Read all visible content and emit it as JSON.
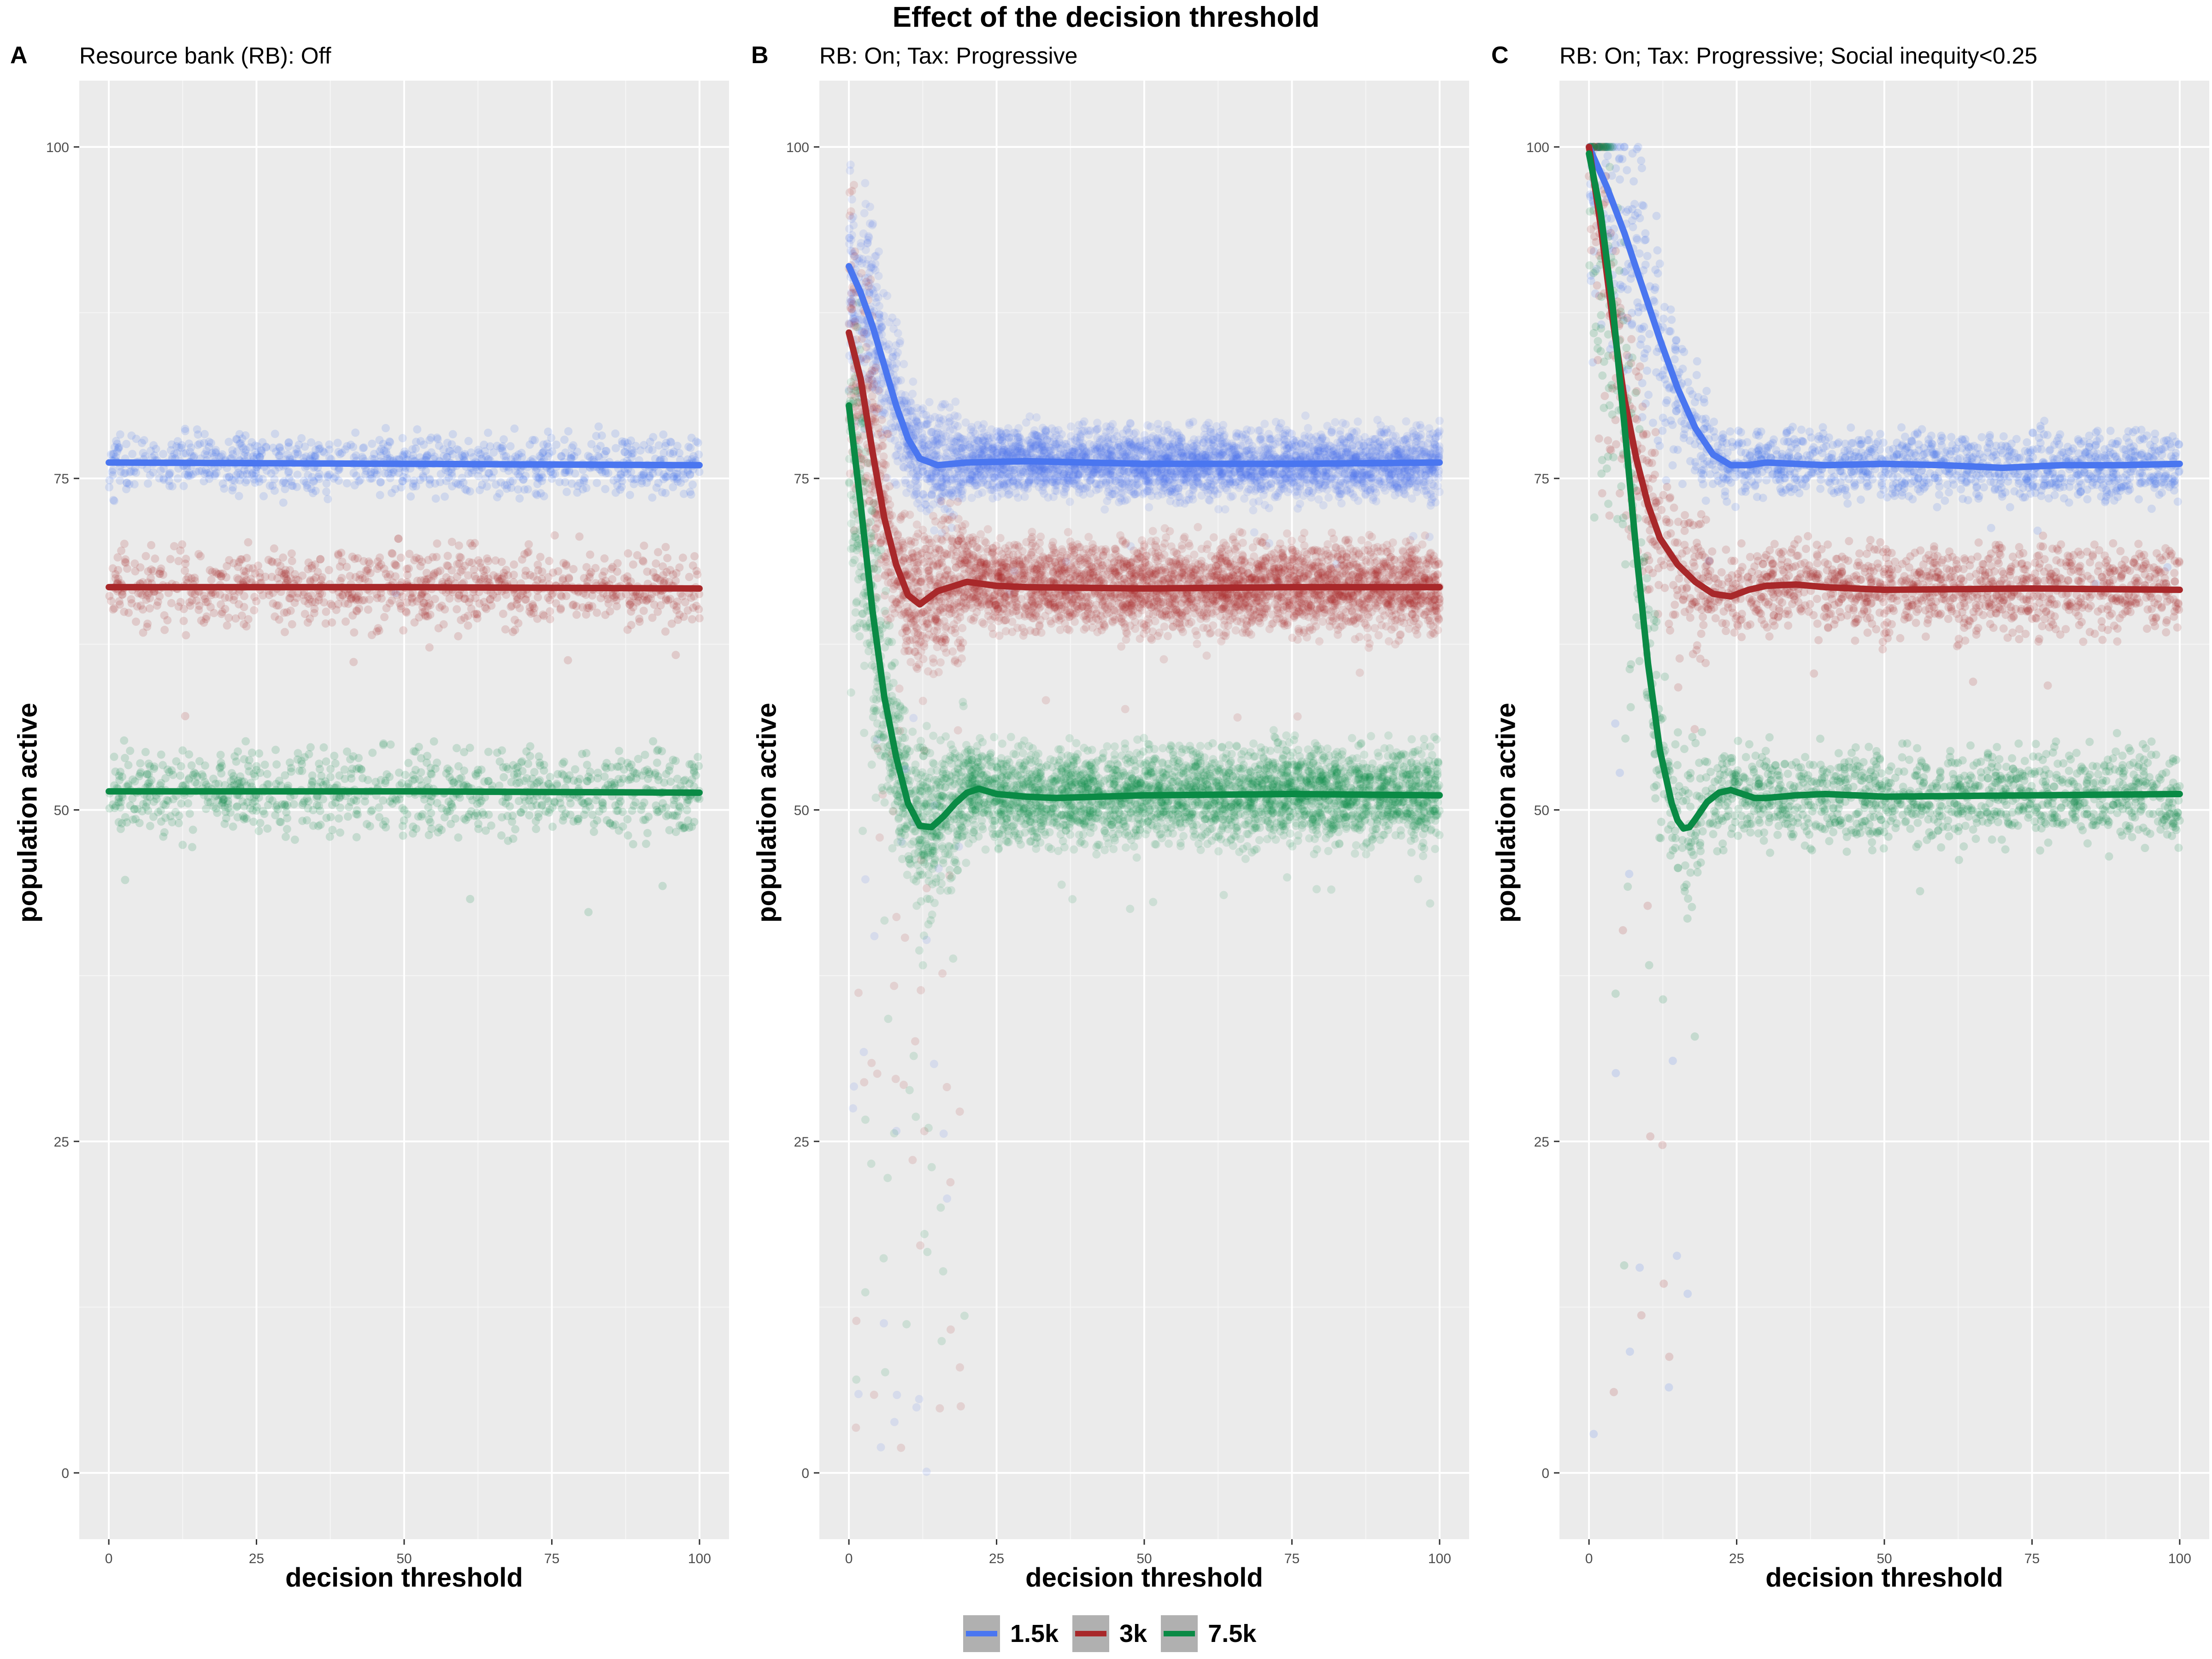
{
  "figure": {
    "title": "Effect of the decision threshold",
    "xlabel": "decision threshold",
    "ylabel": "population active"
  },
  "legend": {
    "placement": "bottom",
    "items": [
      {
        "label": "1.5k",
        "color": "#4A76F0"
      },
      {
        "label": "3k",
        "color": "#A8282A"
      },
      {
        "label": "7.5k",
        "color": "#0A8A45"
      }
    ]
  },
  "chart_data": [
    {
      "type": "scatter",
      "panel_letter": "A",
      "title": "Resource bank (RB): Off",
      "xlabel": "decision threshold",
      "ylabel": "population active",
      "xlim": [
        -5,
        105
      ],
      "ylim": [
        -5,
        105
      ],
      "xticks": [
        0,
        25,
        50,
        75,
        100
      ],
      "yticks": [
        0,
        25,
        50,
        75,
        100
      ],
      "grid": true,
      "series": [
        {
          "name": "1.5k",
          "color": "#4A76F0",
          "smooth_x": [
            0,
            50,
            100
          ],
          "smooth_y": [
            76.2,
            76.1,
            76.0
          ],
          "point_band": [
            73,
            79
          ],
          "point_density": "sparse"
        },
        {
          "name": "3k",
          "color": "#A8282A",
          "smooth_x": [
            0,
            50,
            100
          ],
          "smooth_y": [
            66.8,
            66.8,
            66.7
          ],
          "point_band": [
            63,
            70.5
          ],
          "point_density": "sparse"
        },
        {
          "name": "7.5k",
          "color": "#0A8A45",
          "smooth_x": [
            0,
            50,
            100
          ],
          "smooth_y": [
            51.4,
            51.4,
            51.3
          ],
          "point_band": [
            47.5,
            55.5
          ],
          "point_density": "sparse"
        }
      ]
    },
    {
      "type": "scatter",
      "panel_letter": "B",
      "title": "RB: On; Tax: Progressive",
      "xlabel": "decision threshold",
      "ylabel": "population active",
      "xlim": [
        -5,
        105
      ],
      "ylim": [
        -5,
        105
      ],
      "xticks": [
        0,
        25,
        50,
        75,
        100
      ],
      "yticks": [
        0,
        25,
        50,
        75,
        100
      ],
      "grid": true,
      "series": [
        {
          "name": "1.5k",
          "color": "#4A76F0",
          "smooth_x": [
            0,
            2,
            4,
            6,
            8,
            10,
            12,
            15,
            20,
            30,
            50,
            75,
            100
          ],
          "smooth_y": [
            91,
            89,
            86.5,
            83.5,
            80.5,
            78,
            76.5,
            76,
            76.2,
            76.3,
            76.1,
            76.1,
            76.2
          ],
          "point_band": [
            73,
            79.5
          ],
          "point_density": "dense"
        },
        {
          "name": "3k",
          "color": "#A8282A",
          "smooth_x": [
            0,
            2,
            4,
            6,
            8,
            10,
            12,
            15,
            20,
            25,
            30,
            50,
            75,
            100
          ],
          "smooth_y": [
            86,
            82.5,
            77,
            72,
            68.5,
            66.2,
            65.5,
            66.5,
            67.2,
            66.9,
            66.8,
            66.7,
            66.8,
            66.8
          ],
          "point_band": [
            62.5,
            71
          ],
          "point_density": "dense"
        },
        {
          "name": "7.5k",
          "color": "#0A8A45",
          "smooth_x": [
            0,
            2,
            4,
            6,
            8,
            10,
            12,
            14,
            16,
            18,
            20,
            22,
            25,
            30,
            35,
            50,
            75,
            100
          ],
          "smooth_y": [
            80.5,
            73,
            65,
            58.5,
            54,
            50.5,
            48.8,
            48.7,
            49.5,
            50.5,
            51.3,
            51.6,
            51.2,
            51,
            50.9,
            51.1,
            51.2,
            51.1
          ],
          "point_band": [
            47,
            56
          ],
          "point_density": "dense"
        }
      ]
    },
    {
      "type": "scatter",
      "panel_letter": "C",
      "title": "RB: On; Tax: Progressive; Social inequity<0.25",
      "xlabel": "decision threshold",
      "ylabel": "population active",
      "xlim": [
        -5,
        105
      ],
      "ylim": [
        -5,
        105
      ],
      "xticks": [
        0,
        25,
        50,
        75,
        100
      ],
      "yticks": [
        0,
        25,
        50,
        75,
        100
      ],
      "grid": true,
      "series": [
        {
          "name": "1.5k",
          "color": "#4A76F0",
          "smooth_x": [
            0,
            3,
            6,
            9,
            12,
            15,
            18,
            21,
            24,
            27,
            30,
            35,
            40,
            50,
            60,
            70,
            80,
            90,
            100
          ],
          "smooth_y": [
            100,
            97,
            93.5,
            89.5,
            85.5,
            81.8,
            78.8,
            76.8,
            76,
            76,
            76.2,
            76.1,
            76,
            76.1,
            76,
            75.8,
            76,
            76,
            76.1
          ],
          "point_band": [
            73,
            79.5
          ],
          "point_density": "medium"
        },
        {
          "name": "3k",
          "color": "#A8282A",
          "smooth_x": [
            0,
            2,
            4,
            6,
            8,
            10,
            12,
            15,
            18,
            21,
            24,
            27,
            30,
            35,
            40,
            50,
            75,
            100
          ],
          "smooth_y": [
            100,
            94,
            87,
            81,
            76.5,
            73,
            70.5,
            68.5,
            67.2,
            66.3,
            66.1,
            66.6,
            66.9,
            67,
            66.8,
            66.6,
            66.7,
            66.6
          ],
          "point_band": [
            62.5,
            71
          ],
          "point_density": "medium"
        },
        {
          "name": "7.5k",
          "color": "#0A8A45",
          "smooth_x": [
            0,
            2,
            4,
            6,
            8,
            10,
            12,
            14,
            15,
            16,
            17,
            18,
            20,
            22,
            24,
            26,
            28,
            30,
            35,
            40,
            50,
            75,
            100
          ],
          "smooth_y": [
            99.5,
            95,
            88,
            79,
            69.5,
            61,
            54.5,
            50.5,
            49.2,
            48.6,
            48.7,
            49.3,
            50.6,
            51.3,
            51.5,
            51.2,
            50.9,
            50.9,
            51.1,
            51.2,
            51,
            51.1,
            51.2
          ],
          "point_band": [
            47,
            56
          ],
          "point_density": "medium"
        }
      ]
    }
  ]
}
